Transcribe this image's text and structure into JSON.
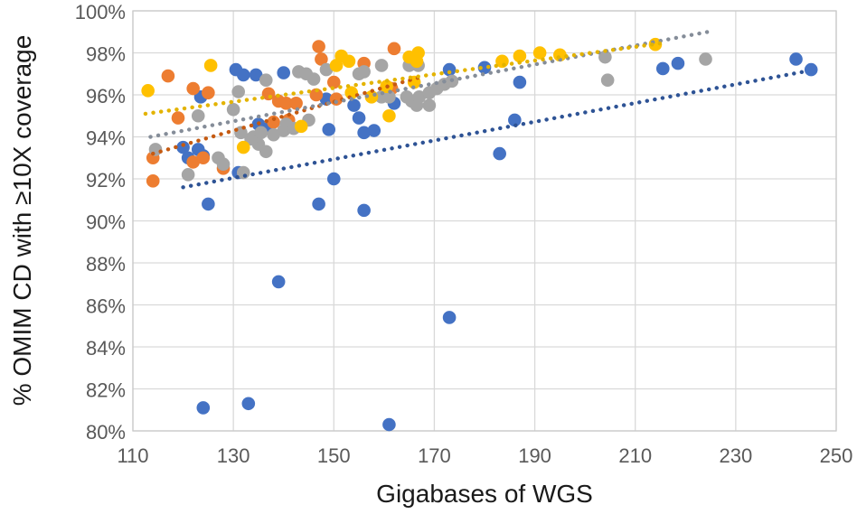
{
  "chart_data": {
    "type": "scatter",
    "title": "",
    "xlabel": "Gigabases of WGS",
    "ylabel": "% OMIM CD with ≥10X coverage",
    "xlim": [
      110,
      250
    ],
    "ylim": [
      80,
      100
    ],
    "x_ticks": [
      110,
      130,
      150,
      170,
      190,
      210,
      230,
      250
    ],
    "y_ticks": [
      80,
      82,
      84,
      86,
      88,
      90,
      92,
      94,
      96,
      98,
      100
    ],
    "y_tick_suffix": "%",
    "grid": true,
    "legend_position": "none",
    "gridline_color": "#d9d9d9",
    "series": [
      {
        "name": "series-blue",
        "color": "#4472C4",
        "trend_color": "#2E5395",
        "trendline": {
          "x1": 120,
          "y1": 91.6,
          "x2": 243.5,
          "y2": 97.1
        },
        "points": [
          [
            124,
            81.1
          ],
          [
            133,
            81.3
          ],
          [
            139,
            87.1
          ],
          [
            161,
            80.3
          ],
          [
            173,
            85.4
          ],
          [
            125,
            90.8
          ],
          [
            147,
            90.8
          ],
          [
            156,
            90.5
          ],
          [
            150,
            92.0
          ],
          [
            131,
            92.3
          ],
          [
            120,
            93.5
          ],
          [
            123,
            93.4
          ],
          [
            121,
            93.0
          ],
          [
            124,
            93.1
          ],
          [
            135,
            94.6
          ],
          [
            137,
            94.4
          ],
          [
            123.5,
            95.9
          ],
          [
            148.5,
            95.8
          ],
          [
            149,
            94.35
          ],
          [
            156,
            94.2
          ],
          [
            158,
            94.3
          ],
          [
            154,
            95.5
          ],
          [
            155,
            94.9
          ],
          [
            162,
            95.6
          ],
          [
            130.5,
            97.2
          ],
          [
            132,
            96.95
          ],
          [
            134.5,
            96.95
          ],
          [
            140,
            97.05
          ],
          [
            173,
            97.2
          ],
          [
            180,
            97.3
          ],
          [
            187,
            96.6
          ],
          [
            186,
            94.8
          ],
          [
            183,
            93.2
          ],
          [
            215.5,
            97.25
          ],
          [
            218.5,
            97.5
          ],
          [
            242,
            97.7
          ],
          [
            245,
            97.2
          ]
        ]
      },
      {
        "name": "series-orange",
        "color": "#ED7D31",
        "trend_color": "#C55A11",
        "trendline": {
          "x1": 114,
          "y1": 93.2,
          "x2": 168,
          "y2": 96.9
        },
        "points": [
          [
            114,
            91.9
          ],
          [
            114,
            93.0
          ],
          [
            119,
            94.9
          ],
          [
            122,
            92.8
          ],
          [
            124,
            93.0
          ],
          [
            128,
            92.5
          ],
          [
            117,
            96.9
          ],
          [
            122,
            96.3
          ],
          [
            125,
            96.1
          ],
          [
            137,
            96.05
          ],
          [
            139,
            95.7
          ],
          [
            140.5,
            95.6
          ],
          [
            142.5,
            95.6
          ],
          [
            138,
            94.7
          ],
          [
            141,
            94.8
          ],
          [
            147,
            98.3
          ],
          [
            147.5,
            97.7
          ],
          [
            156,
            97.5
          ],
          [
            162,
            98.2
          ],
          [
            161.5,
            96.3
          ],
          [
            150,
            96.6
          ],
          [
            150.5,
            95.8
          ],
          [
            146.5,
            96.0
          ]
        ]
      },
      {
        "name": "series-gray",
        "color": "#A5A5A5",
        "trend_color": "#858D99",
        "trendline": {
          "x1": 113.5,
          "y1": 94.0,
          "x2": 224.5,
          "y2": 99.0
        },
        "points": [
          [
            114.5,
            93.4
          ],
          [
            121,
            92.2
          ],
          [
            123,
            95.0
          ],
          [
            127,
            93.0
          ],
          [
            128,
            92.7
          ],
          [
            130,
            95.3
          ],
          [
            131,
            96.15
          ],
          [
            132,
            92.3
          ],
          [
            133.5,
            93.9
          ],
          [
            135,
            93.65
          ],
          [
            136.5,
            93.3
          ],
          [
            131.5,
            94.2
          ],
          [
            134,
            94.0
          ],
          [
            135.5,
            94.2
          ],
          [
            138,
            94.1
          ],
          [
            140,
            94.3
          ],
          [
            140.5,
            94.6
          ],
          [
            142,
            94.4
          ],
          [
            145,
            94.8
          ],
          [
            136.5,
            96.7
          ],
          [
            143,
            97.1
          ],
          [
            144.5,
            97.0
          ],
          [
            146,
            96.75
          ],
          [
            148.5,
            97.2
          ],
          [
            155,
            97.0
          ],
          [
            156,
            97.1
          ],
          [
            159.5,
            97.4
          ],
          [
            165,
            97.4
          ],
          [
            166.8,
            97.4
          ],
          [
            159.5,
            95.9
          ],
          [
            161,
            95.9
          ],
          [
            164.5,
            95.9
          ],
          [
            166.5,
            95.5
          ],
          [
            169,
            95.5
          ],
          [
            165.5,
            95.7
          ],
          [
            167,
            95.9
          ],
          [
            169,
            96.1
          ],
          [
            170.5,
            96.3
          ],
          [
            172,
            96.5
          ],
          [
            173.5,
            96.65
          ],
          [
            204,
            97.8
          ],
          [
            204.5,
            96.7
          ],
          [
            224,
            97.7
          ]
        ]
      },
      {
        "name": "series-yellow",
        "color": "#FFC000",
        "trend_color": "#E3B300",
        "trendline": {
          "x1": 112.5,
          "y1": 95.1,
          "x2": 215,
          "y2": 98.45
        },
        "points": [
          [
            113,
            96.2
          ],
          [
            125.5,
            97.4
          ],
          [
            132,
            93.5
          ],
          [
            143.5,
            94.5
          ],
          [
            150.5,
            97.4
          ],
          [
            151.5,
            97.85
          ],
          [
            153,
            97.6
          ],
          [
            153.5,
            96.1
          ],
          [
            157.5,
            95.9
          ],
          [
            160.5,
            96.4
          ],
          [
            161,
            95.0
          ],
          [
            165,
            97.8
          ],
          [
            166.8,
            98.0
          ],
          [
            166.5,
            97.6
          ],
          [
            166,
            96.6
          ],
          [
            183.5,
            97.6
          ],
          [
            187,
            97.85
          ],
          [
            191,
            98.0
          ],
          [
            195,
            97.9
          ],
          [
            214,
            98.4
          ]
        ]
      }
    ]
  }
}
